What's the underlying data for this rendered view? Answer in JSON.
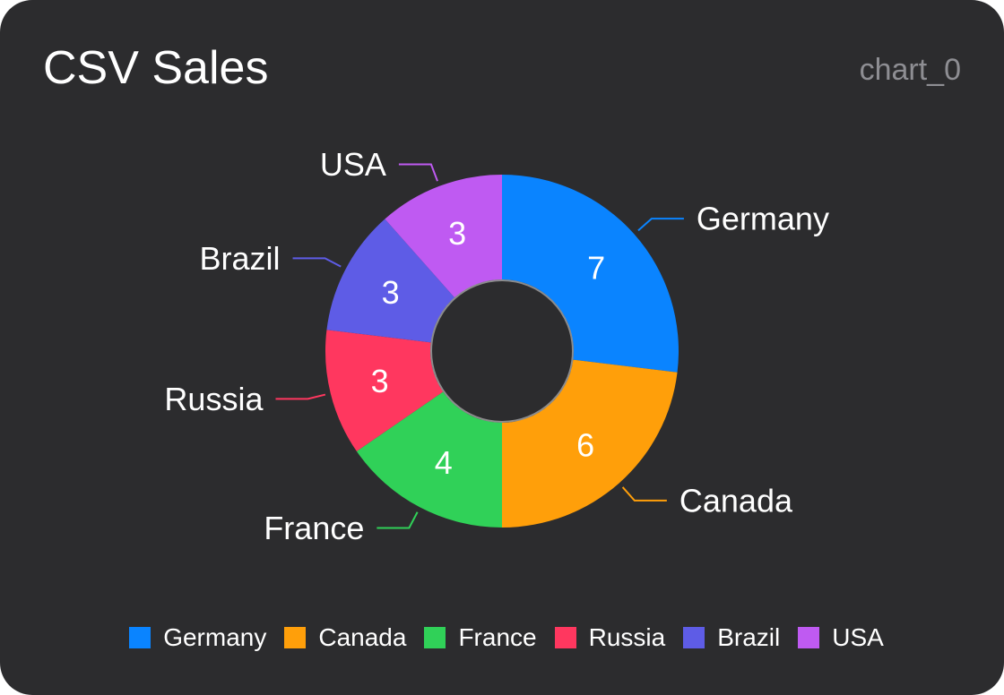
{
  "title": "CSV Sales",
  "chart_id": "chart_0",
  "chart_data": {
    "type": "pie",
    "donut": true,
    "title": "CSV Sales",
    "categories": [
      "Germany",
      "Canada",
      "France",
      "Russia",
      "Brazil",
      "USA"
    ],
    "values": [
      7,
      6,
      4,
      3,
      3,
      3
    ],
    "colors": [
      "#0a84ff",
      "#ff9f0a",
      "#30d158",
      "#ff375f",
      "#5e5ce6",
      "#bf5af2"
    ],
    "data_labels": true,
    "legend": "bottom"
  }
}
